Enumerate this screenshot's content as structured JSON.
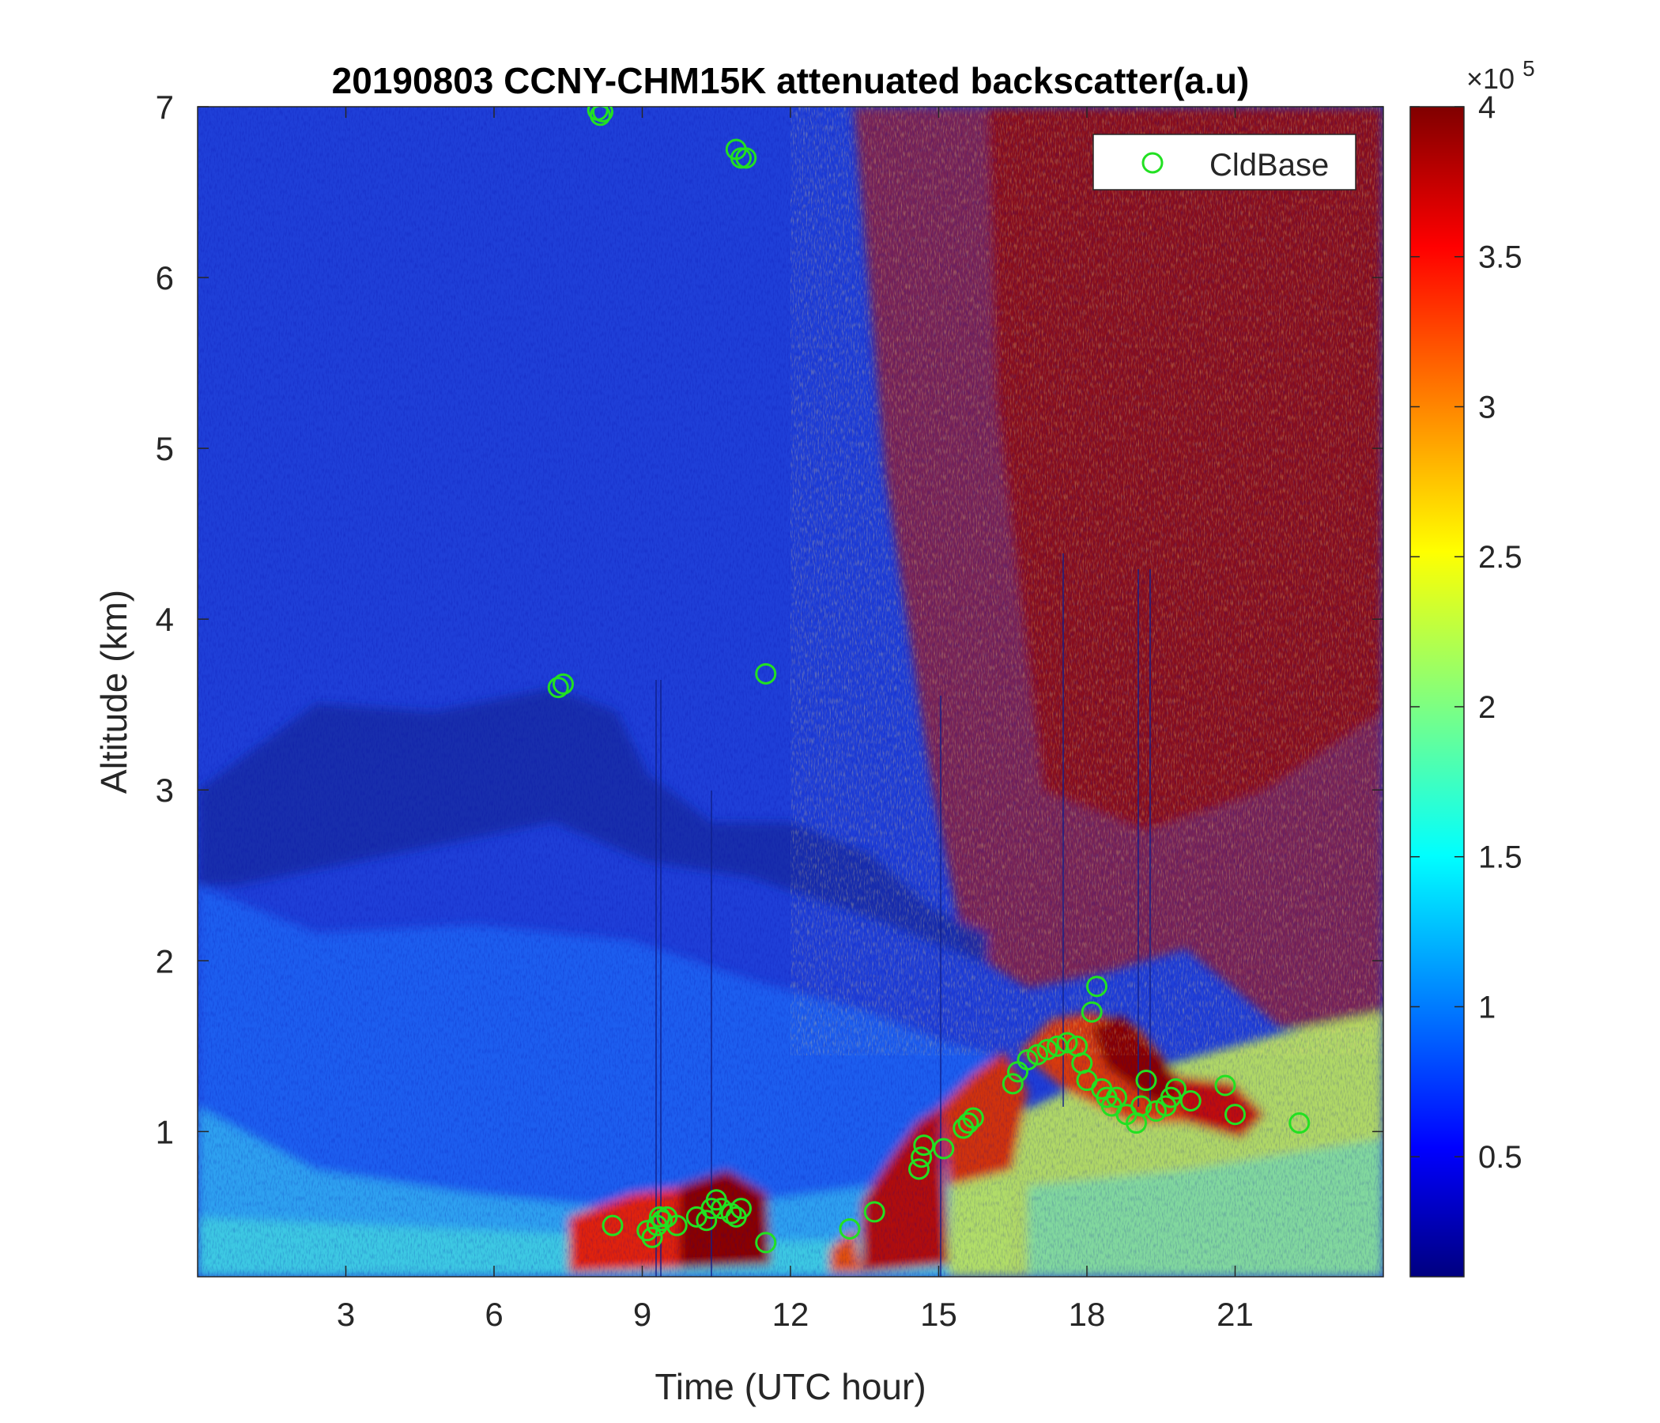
{
  "chart_data": {
    "type": "heatmap",
    "title": "20190803 CCNY-CHM15K attenuated backscatter(a.u)",
    "xlabel": "Time (UTC hour)",
    "ylabel": "Altitude (km)",
    "xlim": [
      0,
      24
    ],
    "ylim": [
      0.15,
      7
    ],
    "xticks": [
      "3",
      "6",
      "9",
      "12",
      "15",
      "18",
      "21"
    ],
    "yticks": [
      "1",
      "2",
      "3",
      "4",
      "5",
      "6",
      "7"
    ],
    "grid": false,
    "colormap": "jet",
    "colorbar": {
      "range": [
        0.1,
        4
      ],
      "ticks": [
        "0.5",
        "1",
        "1.5",
        "2",
        "2.5",
        "3",
        "3.5",
        "4"
      ],
      "exponent_label": "×10",
      "exponent_power": "5"
    },
    "field_description": {
      "upper_left": "low backscatter (~0.5e5) dark blue",
      "upper_right_after_15h": "high noisy backscatter (~4e5) dark red",
      "boundary_layer_0_to_2km": "blue-cyan aerosol layer",
      "near_ground_after_8h": "high backscatter, yellow-red-dark red, clouds ~0.3-1.5 km"
    },
    "legend": {
      "entries": [
        "CldBase"
      ],
      "placement": "top-right",
      "marker": "circle",
      "color": "#22e022"
    },
    "series": [
      {
        "name": "CldBase",
        "x": [
          8.1,
          8.15,
          8.2,
          10.9,
          11.0,
          11.1,
          7.3,
          7.4,
          11.5,
          8.4,
          9.1,
          9.2,
          9.3,
          9.35,
          9.4,
          9.5,
          9.7,
          10.1,
          10.3,
          10.4,
          10.5,
          10.6,
          10.8,
          10.9,
          11.0,
          11.5,
          13.2,
          13.7,
          14.6,
          14.65,
          14.7,
          15.1,
          15.5,
          15.6,
          15.7,
          16.5,
          16.6,
          16.8,
          17.0,
          17.2,
          17.4,
          17.6,
          17.8,
          17.9,
          18.0,
          18.1,
          18.2,
          18.3,
          18.4,
          18.5,
          18.6,
          18.8,
          19.0,
          19.1,
          19.2,
          19.4,
          19.6,
          19.7,
          19.8,
          20.1,
          20.8,
          21.0,
          22.3
        ],
        "y": [
          6.98,
          6.95,
          6.97,
          6.75,
          6.7,
          6.7,
          3.6,
          3.62,
          3.68,
          0.45,
          0.42,
          0.38,
          0.45,
          0.5,
          0.48,
          0.5,
          0.45,
          0.5,
          0.48,
          0.55,
          0.6,
          0.55,
          0.52,
          0.5,
          0.55,
          0.35,
          0.43,
          0.53,
          0.78,
          0.85,
          0.92,
          0.9,
          1.02,
          1.05,
          1.08,
          1.28,
          1.35,
          1.42,
          1.45,
          1.48,
          1.5,
          1.52,
          1.5,
          1.4,
          1.3,
          1.7,
          1.85,
          1.25,
          1.2,
          1.15,
          1.2,
          1.1,
          1.05,
          1.15,
          1.3,
          1.12,
          1.15,
          1.2,
          1.25,
          1.18,
          1.27,
          1.1,
          1.05
        ]
      }
    ]
  }
}
